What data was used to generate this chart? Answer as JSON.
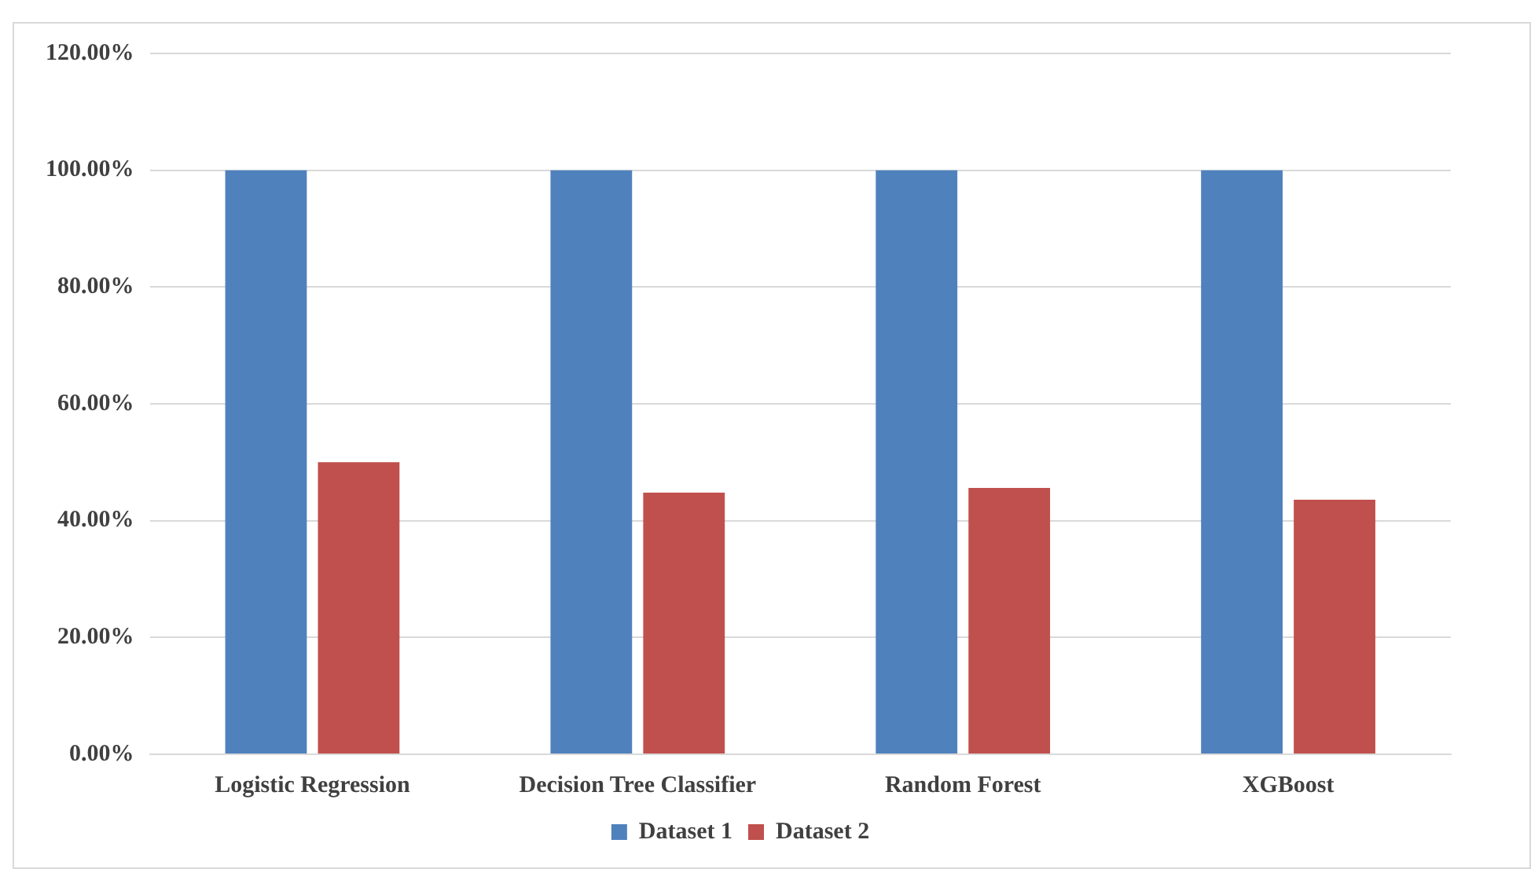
{
  "chart_data": {
    "type": "bar",
    "categories": [
      "Logistic Regression",
      "Decision Tree Classifier",
      "Random Forest",
      "XGBoost"
    ],
    "series": [
      {
        "name": "Dataset 1",
        "color": "#4f81bd",
        "values": [
          100,
          100,
          100,
          100
        ]
      },
      {
        "name": "Dataset 2",
        "color": "#c0504d",
        "values": [
          50,
          44.8,
          45.6,
          43.6
        ]
      }
    ],
    "ylim": [
      0,
      120
    ],
    "yticks": [
      {
        "value": 0,
        "label": "0.00%"
      },
      {
        "value": 20,
        "label": "20.00%"
      },
      {
        "value": 40,
        "label": "40.00%"
      },
      {
        "value": 60,
        "label": "60.00%"
      },
      {
        "value": 80,
        "label": "80.00%"
      },
      {
        "value": 100,
        "label": "100.00%"
      },
      {
        "value": 120,
        "label": "120.00%"
      }
    ],
    "grid": "y",
    "legend": "bottom"
  }
}
